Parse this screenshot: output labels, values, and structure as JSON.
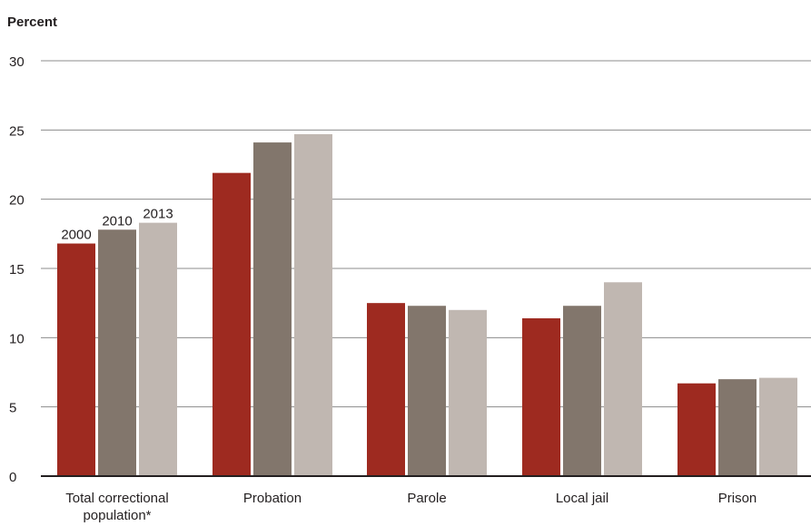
{
  "chart_data": {
    "type": "bar",
    "ylabel": "Percent",
    "xlabel": "",
    "ylim": [
      0,
      30
    ],
    "yticks": [
      0,
      5,
      10,
      15,
      20,
      25,
      30
    ],
    "grid": true,
    "categories": [
      [
        "Total correctional",
        "population*"
      ],
      [
        "Probation"
      ],
      [
        "Parole"
      ],
      [
        "Local jail"
      ],
      [
        "Prison"
      ]
    ],
    "series": [
      {
        "name": "2000",
        "color": "#9e2a20",
        "values": [
          16.8,
          21.9,
          12.5,
          11.4,
          6.7
        ]
      },
      {
        "name": "2010",
        "color": "#82766c",
        "values": [
          17.8,
          24.1,
          12.3,
          12.3,
          7.0
        ]
      },
      {
        "name": "2013",
        "color": "#c0b7b1",
        "values": [
          18.3,
          24.7,
          12.0,
          14.0,
          7.1
        ]
      }
    ]
  }
}
